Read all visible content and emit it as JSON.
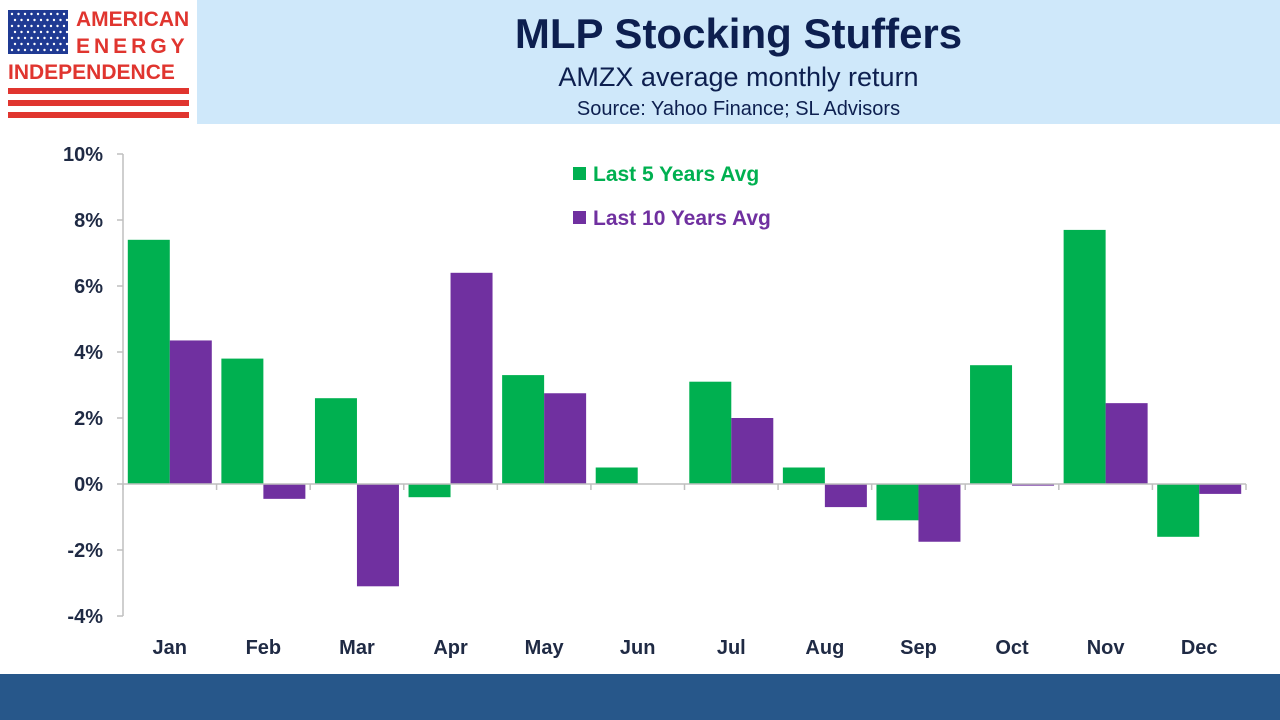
{
  "header": {
    "title": "MLP Stocking Stuffers",
    "subtitle": "AMZX average monthly return",
    "source": "Source: Yahoo Finance; SL Advisors"
  },
  "logo": {
    "line1": "AMERICAN",
    "line2": "ENERGY",
    "line3": "INDEPENDENCE",
    "colors": {
      "red": "#e0352f",
      "navy": "#1f3a93"
    }
  },
  "chart_data": {
    "type": "bar",
    "title": "MLP Stocking Stuffers",
    "subtitle": "AMZX average monthly return",
    "categories": [
      "Jan",
      "Feb",
      "Mar",
      "Apr",
      "May",
      "Jun",
      "Jul",
      "Aug",
      "Sep",
      "Oct",
      "Nov",
      "Dec"
    ],
    "series": [
      {
        "name": "Last 5 Years Avg",
        "color": "#00b050",
        "values": [
          7.4,
          3.8,
          2.6,
          -0.4,
          3.3,
          0.5,
          3.1,
          0.5,
          -1.1,
          3.6,
          7.7,
          -1.6
        ]
      },
      {
        "name": "Last 10 Years Avg",
        "color": "#7030a0",
        "values": [
          4.35,
          -0.45,
          -3.1,
          6.4,
          2.75,
          0.0,
          2.0,
          -0.7,
          -1.75,
          -0.05,
          2.45,
          -0.3
        ]
      }
    ],
    "ylim": [
      -4,
      10
    ],
    "yticks": [
      10,
      8,
      6,
      4,
      2,
      0,
      -2,
      -4
    ],
    "ytick_labels": [
      "10%",
      "8%",
      "6%",
      "4%",
      "2%",
      "0%",
      "-2%",
      "-4%"
    ],
    "xlabel": "",
    "ylabel": "",
    "legend_position": "top-center",
    "grid": false
  },
  "colors": {
    "header_bg": "#cfe8fa",
    "footer_bg": "#27578a",
    "title": "#0d1f4f"
  }
}
